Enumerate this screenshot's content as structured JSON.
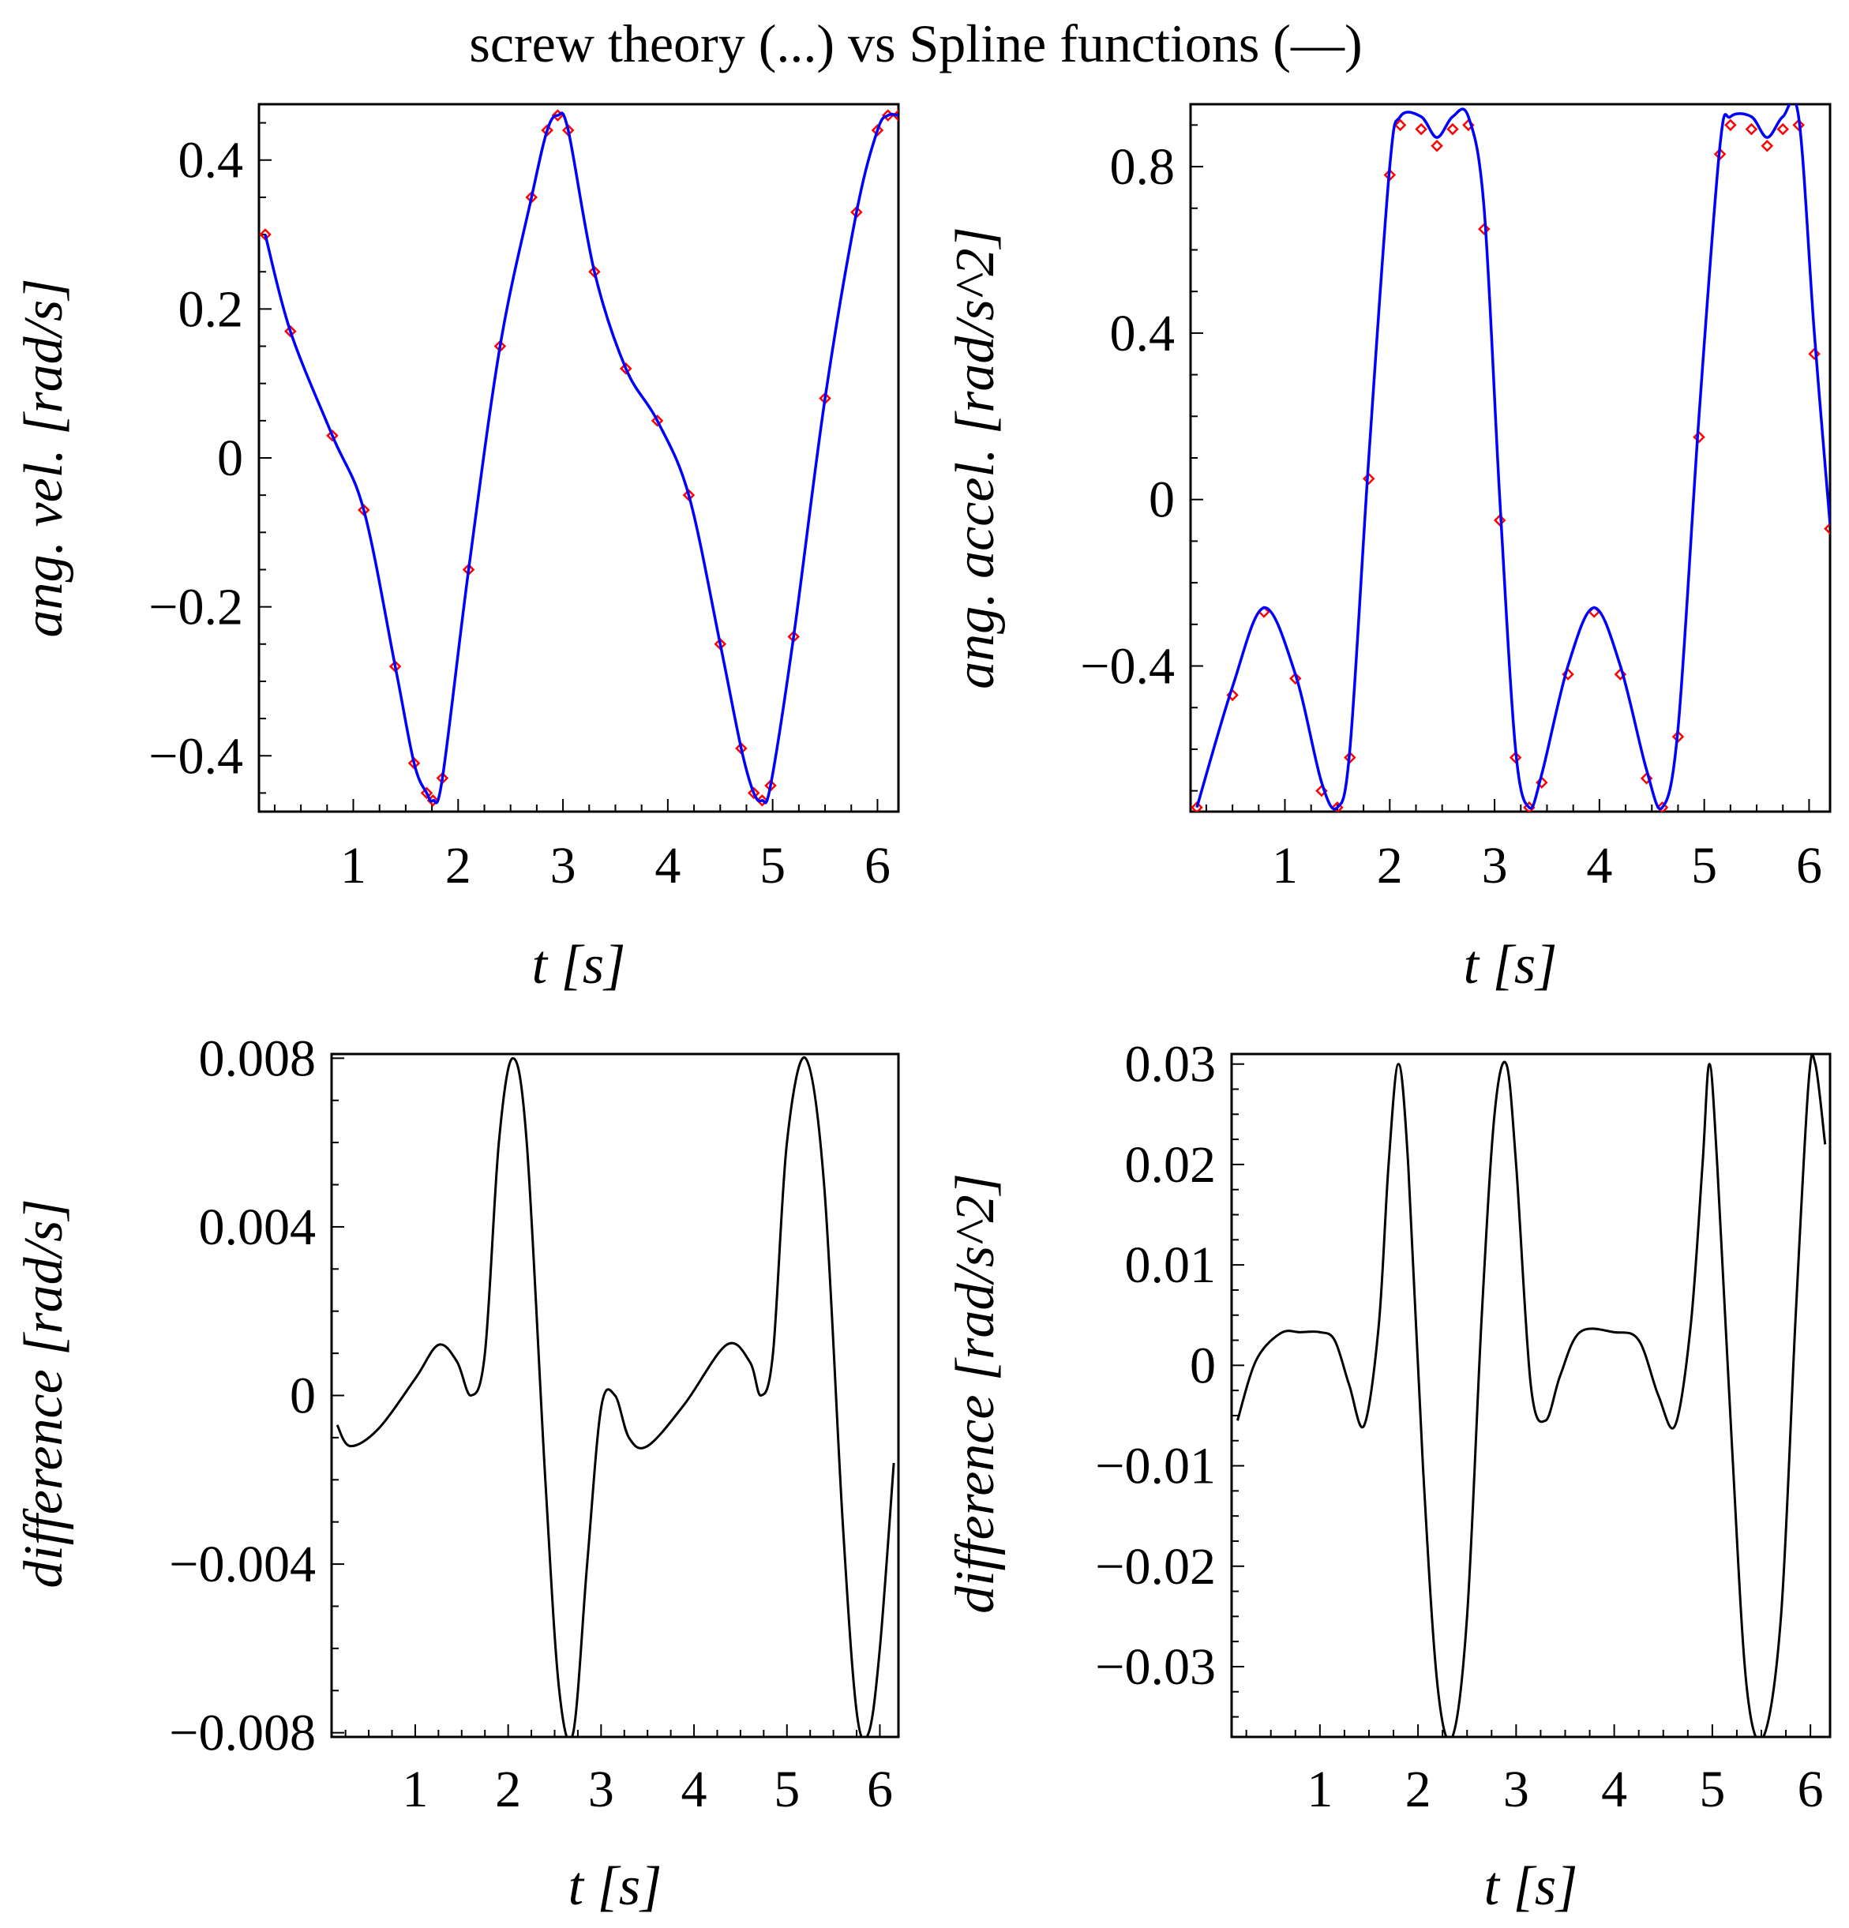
{
  "figure_title": "screw theory (...) vs Spline functions (—)",
  "colors": {
    "spline": "#0000ff",
    "screw": "#ff0000",
    "difference": "#000000",
    "axes": "#000000"
  },
  "chart_data": [
    {
      "type": "line",
      "id": "vel",
      "xlabel": "t [s]",
      "ylabel": "ang. vel. [rad/s]",
      "xlim": [
        0.1,
        6.2
      ],
      "ylim": [
        -0.475,
        0.475
      ],
      "xticks": [
        1,
        2,
        3,
        4,
        5,
        6
      ],
      "xtick_labels": [
        "1",
        "2",
        "3",
        "4",
        "5",
        "6"
      ],
      "yticks": [
        0.4,
        0.2,
        0,
        -0.2,
        -0.4
      ],
      "ytick_labels": [
        "0.4",
        "0.2",
        "0",
        "−0.2",
        "−0.4"
      ],
      "series": [
        {
          "name": "Spline functions",
          "style": "line",
          "x": [
            0.16,
            0.4,
            0.8,
            1.1,
            1.4,
            1.58,
            1.7,
            1.76,
            1.85,
            2.1,
            2.4,
            2.7,
            2.85,
            2.95,
            3.05,
            3.3,
            3.6,
            3.9,
            4.2,
            4.5,
            4.7,
            4.82,
            4.9,
            4.98,
            5.2,
            5.5,
            5.8,
            6.0,
            6.1,
            6.2
          ],
          "values": [
            0.3,
            0.17,
            0.03,
            -0.07,
            -0.28,
            -0.41,
            -0.45,
            -0.46,
            -0.43,
            -0.15,
            0.15,
            0.35,
            0.44,
            0.46,
            0.44,
            0.25,
            0.12,
            0.05,
            -0.05,
            -0.25,
            -0.39,
            -0.45,
            -0.46,
            -0.44,
            -0.24,
            0.08,
            0.33,
            0.44,
            0.46,
            0.46
          ]
        },
        {
          "name": "screw theory",
          "style": "markers",
          "x": [
            0.16,
            0.4,
            0.8,
            1.1,
            1.4,
            1.58,
            1.7,
            1.76,
            1.85,
            2.1,
            2.4,
            2.7,
            2.85,
            2.95,
            3.05,
            3.3,
            3.6,
            3.9,
            4.2,
            4.5,
            4.7,
            4.82,
            4.9,
            4.98,
            5.2,
            5.5,
            5.8,
            6.0,
            6.1,
            6.2
          ],
          "values": [
            0.3,
            0.17,
            0.03,
            -0.07,
            -0.28,
            -0.41,
            -0.45,
            -0.46,
            -0.43,
            -0.15,
            0.15,
            0.35,
            0.44,
            0.46,
            0.44,
            0.25,
            0.12,
            0.05,
            -0.05,
            -0.25,
            -0.39,
            -0.45,
            -0.46,
            -0.44,
            -0.24,
            0.08,
            0.33,
            0.44,
            0.46,
            0.46
          ]
        }
      ]
    },
    {
      "type": "line",
      "id": "acc",
      "xlabel": "t [s]",
      "ylabel": "ang. accel. [rad/s^2]",
      "xlim": [
        0.1,
        6.2
      ],
      "ylim": [
        -0.75,
        0.95
      ],
      "xticks": [
        1,
        2,
        3,
        4,
        5,
        6
      ],
      "xtick_labels": [
        "1",
        "2",
        "3",
        "4",
        "5",
        "6"
      ],
      "yticks": [
        0.8,
        0.4,
        0,
        -0.4
      ],
      "ytick_labels": [
        "0.8",
        "0.4",
        "0",
        "−0.4"
      ],
      "series": [
        {
          "name": "Spline functions",
          "style": "line",
          "x": [
            0.16,
            0.5,
            0.8,
            1.1,
            1.35,
            1.5,
            1.62,
            1.8,
            2.0,
            2.1,
            2.3,
            2.45,
            2.6,
            2.75,
            2.9,
            3.05,
            3.2,
            3.33,
            3.45,
            3.7,
            3.95,
            4.2,
            4.45,
            4.6,
            4.75,
            4.95,
            5.15,
            5.25,
            5.45,
            5.6,
            5.75,
            5.9,
            6.05,
            6.2
          ],
          "values": [
            -0.74,
            -0.45,
            -0.26,
            -0.42,
            -0.68,
            -0.74,
            -0.6,
            0.1,
            0.8,
            0.92,
            0.92,
            0.87,
            0.92,
            0.92,
            0.7,
            0.0,
            -0.6,
            -0.74,
            -0.66,
            -0.4,
            -0.26,
            -0.4,
            -0.65,
            -0.74,
            -0.55,
            0.2,
            0.85,
            0.92,
            0.92,
            0.87,
            0.92,
            0.92,
            0.4,
            -0.06
          ]
        },
        {
          "name": "screw theory",
          "style": "markers",
          "x": [
            0.16,
            0.5,
            0.8,
            1.1,
            1.35,
            1.5,
            1.62,
            1.8,
            2.0,
            2.1,
            2.3,
            2.45,
            2.6,
            2.75,
            2.9,
            3.05,
            3.2,
            3.33,
            3.45,
            3.7,
            3.95,
            4.2,
            4.45,
            4.6,
            4.75,
            4.95,
            5.15,
            5.25,
            5.45,
            5.6,
            5.75,
            5.9,
            6.05,
            6.2
          ],
          "values": [
            -0.74,
            -0.47,
            -0.27,
            -0.43,
            -0.7,
            -0.74,
            -0.62,
            0.05,
            0.78,
            0.9,
            0.89,
            0.85,
            0.89,
            0.9,
            0.65,
            -0.05,
            -0.62,
            -0.74,
            -0.68,
            -0.42,
            -0.27,
            -0.42,
            -0.67,
            -0.74,
            -0.57,
            0.15,
            0.83,
            0.9,
            0.89,
            0.85,
            0.89,
            0.9,
            0.35,
            -0.07
          ]
        }
      ]
    },
    {
      "type": "line",
      "id": "diffvel",
      "xlabel": "t [s]",
      "ylabel": "difference [rad/s]",
      "xlim": [
        0.1,
        6.2
      ],
      "ylim": [
        -0.0081,
        0.0081
      ],
      "xticks": [
        1,
        2,
        3,
        4,
        5,
        6
      ],
      "xtick_labels": [
        "1",
        "2",
        "3",
        "4",
        "5",
        "6"
      ],
      "yticks": [
        0.008,
        0.004,
        0,
        -0.004,
        -0.008
      ],
      "ytick_labels": [
        "0.008",
        "0.004",
        "0",
        "−0.004",
        "−0.008"
      ],
      "series": [
        {
          "name": "difference",
          "style": "line",
          "x": [
            0.16,
            0.3,
            0.6,
            1.0,
            1.25,
            1.45,
            1.6,
            1.75,
            1.9,
            2.05,
            2.2,
            2.4,
            2.55,
            2.7,
            2.85,
            3.0,
            3.15,
            3.3,
            3.5,
            3.9,
            4.35,
            4.6,
            4.72,
            4.85,
            5.0,
            5.2,
            5.4,
            5.6,
            5.75,
            5.88,
            6.0,
            6.15
          ],
          "values": [
            -0.0007,
            -0.0012,
            -0.0008,
            0.0004,
            0.0012,
            0.0008,
            0.0,
            0.001,
            0.006,
            0.008,
            0.006,
            -0.002,
            -0.007,
            -0.008,
            -0.004,
            -0.0003,
            0.0,
            -0.001,
            -0.0012,
            -0.0002,
            0.0012,
            0.0008,
            0.0,
            0.001,
            0.006,
            0.008,
            0.005,
            -0.003,
            -0.0075,
            -0.008,
            -0.006,
            -0.0016
          ]
        }
      ]
    },
    {
      "type": "line",
      "id": "diffacc",
      "xlabel": "t [s]",
      "ylabel": "difference [rad/s^2]",
      "xlim": [
        0.1,
        6.2
      ],
      "ylim": [
        -0.037,
        0.031
      ],
      "xticks": [
        1,
        2,
        3,
        4,
        5,
        6
      ],
      "xtick_labels": [
        "1",
        "2",
        "3",
        "4",
        "5",
        "6"
      ],
      "yticks": [
        0.03,
        0.02,
        0.01,
        0,
        -0.01,
        -0.02,
        -0.03
      ],
      "ytick_labels": [
        "0.03",
        "0.02",
        "0.01",
        "0",
        "−0.01",
        "−0.02",
        "−0.03"
      ],
      "series": [
        {
          "name": "difference",
          "style": "line",
          "x": [
            0.16,
            0.35,
            0.6,
            0.8,
            1.0,
            1.15,
            1.3,
            1.45,
            1.6,
            1.7,
            1.8,
            1.9,
            2.05,
            2.2,
            2.35,
            2.5,
            2.65,
            2.78,
            2.9,
            3.0,
            3.15,
            3.3,
            3.45,
            3.65,
            4.0,
            4.25,
            4.45,
            4.62,
            4.78,
            4.9,
            4.97,
            5.05,
            5.2,
            5.35,
            5.52,
            5.7,
            5.85,
            5.98,
            6.05,
            6.15
          ],
          "values": [
            -0.0055,
            0.0005,
            0.0032,
            0.0033,
            0.0033,
            0.0025,
            -0.002,
            -0.006,
            0.004,
            0.02,
            0.03,
            0.02,
            -0.01,
            -0.032,
            -0.037,
            -0.025,
            0.005,
            0.025,
            0.03,
            0.02,
            -0.002,
            -0.0055,
            -0.001,
            0.0033,
            0.0033,
            0.0025,
            -0.003,
            -0.006,
            0.004,
            0.02,
            0.03,
            0.02,
            -0.008,
            -0.032,
            -0.037,
            -0.025,
            0.005,
            0.028,
            0.03,
            0.022
          ]
        }
      ]
    }
  ]
}
